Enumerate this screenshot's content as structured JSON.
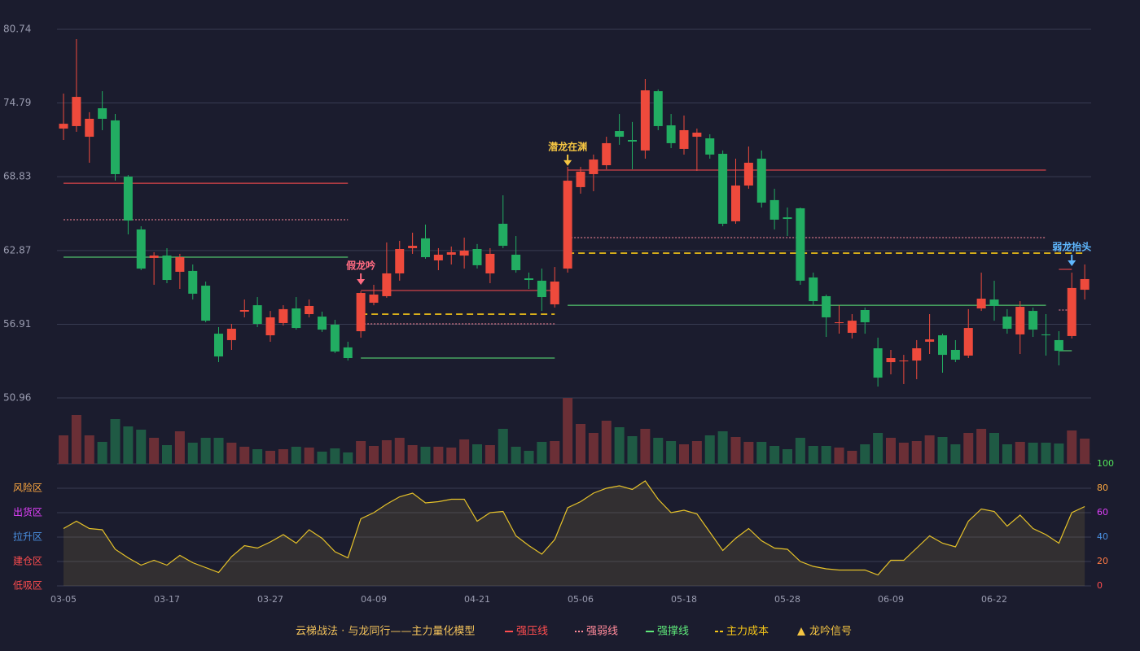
{
  "chart_data": {
    "type": "candlestick",
    "title": "云梯战法 · 与龙同行——主力量化模型",
    "categories": [
      "03-05",
      null,
      null,
      null,
      null,
      null,
      null,
      null,
      "03-17",
      null,
      null,
      null,
      null,
      null,
      null,
      null,
      "03-27",
      null,
      null,
      null,
      null,
      null,
      null,
      null,
      "04-09",
      null,
      null,
      null,
      null,
      null,
      null,
      null,
      "04-21",
      null,
      null,
      null,
      null,
      null,
      null,
      null,
      "05-06",
      null,
      null,
      null,
      null,
      null,
      null,
      null,
      "05-18",
      null,
      null,
      null,
      null,
      null,
      null,
      null,
      "05-28",
      null,
      null,
      null,
      null,
      null,
      null,
      null,
      "06-09",
      null,
      null,
      null,
      null,
      null,
      null,
      null,
      "06-22",
      null,
      null,
      null,
      null,
      null,
      null,
      null
    ],
    "open": [
      72.72,
      72.92,
      72.06,
      74.36,
      73.38,
      68.84,
      64.57,
      62.27,
      62.46,
      61.15,
      61.22,
      60.03,
      56.15,
      55.63,
      57.93,
      58.45,
      56.02,
      57.01,
      58.19,
      57.73,
      57.53,
      56.88,
      55.04,
      56.35,
      58.65,
      59.18,
      61.02,
      63.06,
      63.85,
      62.07,
      62.53,
      62.46,
      62.99,
      61.02,
      65.03,
      62.53,
      60.62,
      60.43,
      58.52,
      61.41,
      67.99,
      69.04,
      69.76,
      72.52,
      71.8,
      70.95,
      75.74,
      72.98,
      71.08,
      72.06,
      71.93,
      70.68,
      65.23,
      68.12,
      70.29,
      66.94,
      65.55,
      66.28,
      60.69,
      59.18,
      57.01,
      56.22,
      58.06,
      54.97,
      53.85,
      53.92,
      53.98,
      55.5,
      56.02,
      54.84,
      54.38,
      58.19,
      58.91,
      57.53,
      56.09,
      57.99,
      56.09,
      55.63,
      55.96,
      59.7
    ],
    "close": [
      73.11,
      75.28,
      73.51,
      73.51,
      69.04,
      65.29,
      61.41,
      62.46,
      60.49,
      62.33,
      59.38,
      57.2,
      54.31,
      56.55,
      58.06,
      56.94,
      57.47,
      58.13,
      56.61,
      58.39,
      56.48,
      54.71,
      54.18,
      59.44,
      59.31,
      61.02,
      62.99,
      63.25,
      62.33,
      62.53,
      62.73,
      62.86,
      61.68,
      62.6,
      63.25,
      61.28,
      60.49,
      59.11,
      60.36,
      68.51,
      69.24,
      70.22,
      71.54,
      72.06,
      71.67,
      75.81,
      72.92,
      71.54,
      72.59,
      72.39,
      70.62,
      65.03,
      68.12,
      69.96,
      66.74,
      65.36,
      65.42,
      60.43,
      58.78,
      57.47,
      57.07,
      57.2,
      57.07,
      52.6,
      54.18,
      53.98,
      54.97,
      55.69,
      54.44,
      54.05,
      56.61,
      58.98,
      58.39,
      56.55,
      58.32,
      56.48,
      56.02,
      54.77,
      59.84,
      60.56
    ],
    "high": [
      75.55,
      79.95,
      74.04,
      75.74,
      73.9,
      68.97,
      64.83,
      62.73,
      63.06,
      62.6,
      61.74,
      60.36,
      56.68,
      56.94,
      58.91,
      59.11,
      57.99,
      58.45,
      59.11,
      58.91,
      57.93,
      57.27,
      55.5,
      59.57,
      60.1,
      63.52,
      63.65,
      64.31,
      64.96,
      63.06,
      63.19,
      63.91,
      63.39,
      63.06,
      67.33,
      64.04,
      61.08,
      61.41,
      61.54,
      69.63,
      69.63,
      70.62,
      72.06,
      73.9,
      73.25,
      76.73,
      75.88,
      73.9,
      73.77,
      72.72,
      72.26,
      70.95,
      70.29,
      71.27,
      70.95,
      67.86,
      66.34,
      66.34,
      61.08,
      59.31,
      58.45,
      57.73,
      58.26,
      55.83,
      54.84,
      54.44,
      55.63,
      57.73,
      56.15,
      55.63,
      58.13,
      61.08,
      60.43,
      58.13,
      58.78,
      58.26,
      57.73,
      56.35,
      61.08,
      61.74
    ],
    "low": [
      71.8,
      72.46,
      69.96,
      72.59,
      68.51,
      64.17,
      61.28,
      60.1,
      60.23,
      59.77,
      58.91,
      57.07,
      53.85,
      54.84,
      57.47,
      56.68,
      55.5,
      56.81,
      56.48,
      57.47,
      56.29,
      54.58,
      53.98,
      55.83,
      58.45,
      59.05,
      60.43,
      62.6,
      62.2,
      61.28,
      61.74,
      61.41,
      61.41,
      60.23,
      63.06,
      61.08,
      59.77,
      57.99,
      58.26,
      61.08,
      67.46,
      67.66,
      69.43,
      71.41,
      69.43,
      70.29,
      72.59,
      71.14,
      70.62,
      69.3,
      70.29,
      64.83,
      65.03,
      67.86,
      66.34,
      64.57,
      64.04,
      60.1,
      58.45,
      55.89,
      56.15,
      55.76,
      56.15,
      51.88,
      52.87,
      52.08,
      52.47,
      54.51,
      53.0,
      53.85,
      54.18,
      57.99,
      57.2,
      56.15,
      54.51,
      55.89,
      54.38,
      53.59,
      55.76,
      58.91
    ],
    "up_color": "#ee4a3c",
    "down_color": "#22ad62",
    "ylim": [
      50.96,
      80.74
    ],
    "yticks": [
      50.96,
      56.91,
      62.87,
      68.83,
      74.79,
      80.74
    ],
    "grid": true,
    "volume": [
      35,
      60,
      35,
      27,
      55,
      46,
      42,
      32,
      23,
      40,
      26,
      32,
      32,
      26,
      21,
      18,
      16,
      18,
      21,
      20,
      15,
      19,
      14,
      28,
      22,
      29,
      32,
      23,
      21,
      21,
      20,
      30,
      24,
      23,
      43,
      21,
      16,
      27,
      28,
      81,
      49,
      38,
      53,
      45,
      34,
      43,
      32,
      28,
      24,
      28,
      35,
      40,
      33,
      27,
      27,
      22,
      18,
      32,
      22,
      22,
      20,
      16,
      24,
      38,
      32,
      26,
      28,
      35,
      33,
      24,
      38,
      43,
      38,
      24,
      27,
      26,
      26,
      25,
      41,
      31
    ],
    "volume_up_color": "#6b2f36",
    "volume_down_color": "#1f5a44",
    "lines": [
      {
        "name": "强压线",
        "color": "#ff4d4f",
        "style": "solid",
        "values": [
          68.31,
          68.31,
          68.31,
          68.31,
          68.31,
          68.31,
          68.31,
          68.31,
          68.31,
          68.31,
          68.31,
          68.31,
          68.31,
          68.31,
          68.31,
          68.31,
          68.31,
          68.31,
          68.31,
          68.31,
          68.31,
          68.31,
          68.31,
          59.64,
          59.64,
          59.64,
          59.64,
          59.64,
          59.64,
          59.64,
          59.64,
          59.64,
          59.64,
          59.64,
          59.64,
          59.64,
          59.64,
          59.64,
          59.64,
          69.37,
          69.37,
          69.37,
          69.37,
          69.37,
          69.37,
          69.37,
          69.37,
          69.37,
          69.37,
          69.37,
          69.37,
          69.37,
          69.37,
          69.37,
          69.37,
          69.37,
          69.37,
          69.37,
          69.37,
          69.37,
          69.37,
          69.37,
          69.37,
          69.37,
          69.37,
          69.37,
          69.37,
          69.37,
          69.37,
          69.37,
          69.37,
          69.37,
          69.37,
          69.37,
          69.37,
          69.37,
          69.37,
          61.35,
          61.35
        ]
      },
      {
        "name": "强弱线",
        "color": "#ff8a9a",
        "style": "dotted",
        "values": [
          65.36,
          65.36,
          65.36,
          65.36,
          65.36,
          65.36,
          65.36,
          65.36,
          65.36,
          65.36,
          65.36,
          65.36,
          65.36,
          65.36,
          65.36,
          65.36,
          65.36,
          65.36,
          65.36,
          65.36,
          65.36,
          65.36,
          65.36,
          56.94,
          56.94,
          56.94,
          56.94,
          56.94,
          56.94,
          56.94,
          56.94,
          56.94,
          56.94,
          56.94,
          56.94,
          56.94,
          56.94,
          56.94,
          56.94,
          63.91,
          63.91,
          63.91,
          63.91,
          63.91,
          63.91,
          63.91,
          63.91,
          63.91,
          63.91,
          63.91,
          63.91,
          63.91,
          63.91,
          63.91,
          63.91,
          63.91,
          63.91,
          63.91,
          63.91,
          63.91,
          63.91,
          63.91,
          63.91,
          63.91,
          63.91,
          63.91,
          63.91,
          63.91,
          63.91,
          63.91,
          63.91,
          63.91,
          63.91,
          63.91,
          63.91,
          63.91,
          63.91,
          58.06,
          58.06
        ]
      },
      {
        "name": "强撑线",
        "color": "#5ee87a",
        "style": "solid",
        "values": [
          62.33,
          62.33,
          62.33,
          62.33,
          62.33,
          62.33,
          62.33,
          62.33,
          62.33,
          62.33,
          62.33,
          62.33,
          62.33,
          62.33,
          62.33,
          62.33,
          62.33,
          62.33,
          62.33,
          62.33,
          62.33,
          62.33,
          62.33,
          54.18,
          54.18,
          54.18,
          54.18,
          54.18,
          54.18,
          54.18,
          54.18,
          54.18,
          54.18,
          54.18,
          54.18,
          54.18,
          54.18,
          54.18,
          54.18,
          58.45,
          58.45,
          58.45,
          58.45,
          58.45,
          58.45,
          58.45,
          58.45,
          58.45,
          58.45,
          58.45,
          58.45,
          58.45,
          58.45,
          58.45,
          58.45,
          58.45,
          58.45,
          58.45,
          58.45,
          58.45,
          58.45,
          58.45,
          58.45,
          58.45,
          58.45,
          58.45,
          58.45,
          58.45,
          58.45,
          58.45,
          58.45,
          58.45,
          58.45,
          58.45,
          58.45,
          58.45,
          58.45,
          54.77,
          54.77
        ]
      },
      {
        "name": "主力成本",
        "color": "#f5c518",
        "style": "dashed",
        "values": [
          null,
          null,
          null,
          null,
          null,
          null,
          null,
          null,
          null,
          null,
          null,
          null,
          null,
          null,
          null,
          null,
          null,
          null,
          null,
          null,
          null,
          null,
          null,
          57.73,
          57.73,
          57.73,
          57.73,
          57.73,
          57.73,
          57.73,
          57.73,
          57.73,
          57.73,
          57.73,
          57.73,
          57.73,
          57.73,
          57.73,
          57.73,
          62.66,
          62.66,
          62.66,
          62.66,
          62.66,
          62.66,
          62.66,
          62.66,
          62.66,
          62.66,
          62.66,
          62.66,
          62.66,
          62.66,
          62.66,
          62.66,
          62.66,
          62.66,
          62.66,
          62.66,
          62.66,
          62.66,
          62.66,
          62.66,
          62.66,
          62.66,
          62.66,
          62.66,
          62.66,
          62.66,
          62.66,
          62.66,
          62.66,
          62.66,
          62.66,
          62.66,
          62.66,
          62.66,
          62.66,
          62.66,
          62.66
        ]
      }
    ],
    "signals": [
      {
        "label": "假龙吟",
        "x": 23,
        "value": 60.1,
        "color": "#ff6b81"
      },
      {
        "label": "潜龙在渊",
        "x": 39,
        "value": 69.7,
        "color": "#f5c542"
      },
      {
        "label": "弱龙抬头",
        "x": 78,
        "value": 61.61,
        "color": "#5fb8ff"
      }
    ],
    "signal_legend": {
      "name": "龙吟信号",
      "color": "#f5c542"
    },
    "oscillator": {
      "values": [
        47,
        53,
        47,
        46,
        30,
        23,
        17,
        21,
        17,
        25,
        19,
        15,
        11,
        24,
        33,
        31,
        36,
        42,
        35,
        46,
        39,
        28,
        23,
        55,
        60,
        67,
        73,
        76,
        68,
        69,
        71,
        71,
        53,
        60,
        61,
        41,
        33,
        26,
        38,
        64,
        69,
        76,
        80,
        82,
        79,
        86,
        71,
        60,
        62,
        59,
        44,
        29,
        39,
        47,
        37,
        31,
        30,
        20,
        16,
        14,
        13,
        13,
        13,
        9,
        21,
        21,
        31,
        41,
        35,
        32,
        53,
        63,
        61,
        49,
        58,
        47,
        42,
        35,
        60,
        65
      ],
      "color": "#e6c229",
      "ylim": [
        0,
        100
      ],
      "yticks": [
        0,
        20,
        40,
        60,
        80,
        100
      ],
      "tick_colors": [
        "#ff4d4f",
        "#ff7a45",
        "#4a90e2",
        "#e040fb",
        "#ffa940",
        "#52e35a"
      ],
      "zones": [
        {
          "value": 80,
          "label": "风险区",
          "color": "#ffa940"
        },
        {
          "value": 60,
          "label": "出货区",
          "color": "#e040fb"
        },
        {
          "value": 40,
          "label": "拉升区",
          "color": "#4a90e2"
        },
        {
          "value": 20,
          "label": "建仓区",
          "color": "#ff4d4f"
        },
        {
          "value": 0,
          "label": "低吸区",
          "color": "#ff4d4f"
        }
      ]
    }
  }
}
